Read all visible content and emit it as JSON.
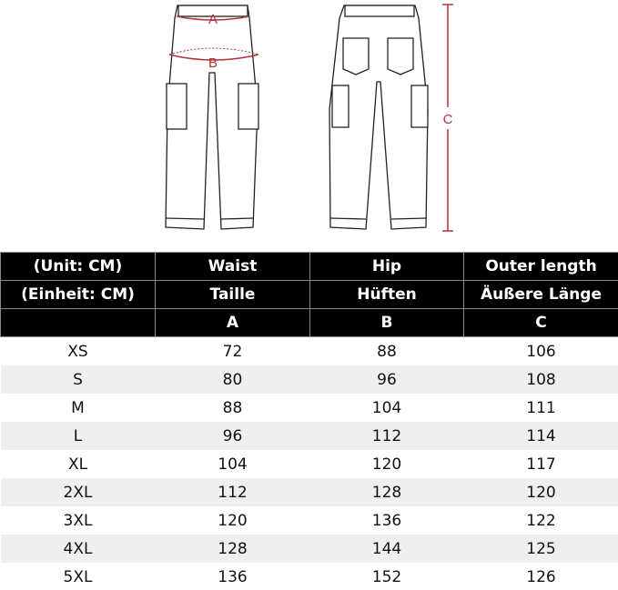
{
  "diagram": {
    "labels": {
      "waist": "A",
      "hip": "B",
      "length": "C"
    },
    "measure_color": "#b5303c"
  },
  "table": {
    "header_rows": [
      [
        "(Unit: CM)",
        "Waist",
        "Hip",
        "Outer length"
      ],
      [
        "(Einheit: CM)",
        "Taille",
        "Hüften",
        "Äußere Länge"
      ],
      [
        "",
        "A",
        "B",
        "C"
      ]
    ],
    "rows": [
      [
        "XS",
        "72",
        "88",
        "106"
      ],
      [
        "S",
        "80",
        "96",
        "108"
      ],
      [
        "M",
        "88",
        "104",
        "111"
      ],
      [
        "L",
        "96",
        "112",
        "114"
      ],
      [
        "XL",
        "104",
        "120",
        "117"
      ],
      [
        "2XL",
        "112",
        "128",
        "120"
      ],
      [
        "3XL",
        "120",
        "136",
        "122"
      ],
      [
        "4XL",
        "128",
        "144",
        "125"
      ],
      [
        "5XL",
        "136",
        "152",
        "126"
      ]
    ]
  }
}
